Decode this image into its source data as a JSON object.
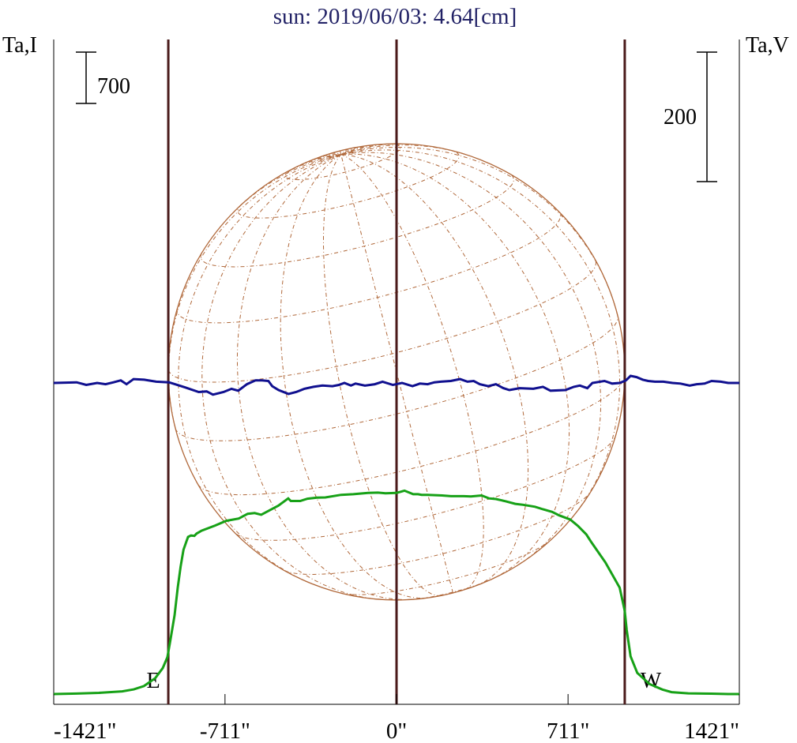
{
  "chart_data": {
    "type": "line",
    "title": "sun: 2019/06/03: 4.64[cm]",
    "y_left_label": "Ta,I",
    "y_right_label": "Ta,V",
    "x_unit": "arcsec",
    "x_range": [
      -1421,
      1421
    ],
    "x_ticks": [
      -1421,
      -711,
      0,
      711,
      1421
    ],
    "x_tick_labels": [
      "-1421\"",
      "-711\"",
      "0\"",
      "711\"",
      "1421\""
    ],
    "scale_bar_left": {
      "label": "700",
      "value": 700
    },
    "scale_bar_right": {
      "label": "200",
      "value": 200
    },
    "limb_markers": [
      {
        "label": "E",
        "x": -946
      },
      {
        "label": "W",
        "x": 946
      }
    ],
    "center_marker": {
      "x": 0
    },
    "solar_disk_radius_arcsec": 946,
    "series": [
      {
        "name": "I",
        "color": "#17a117",
        "axis": "left",
        "x": [
          -1421,
          -1326,
          -1234,
          -1137,
          -1089,
          -1047,
          -1000,
          -969,
          -950,
          -938,
          -920,
          -907,
          -895,
          -883,
          -871,
          -864,
          -852,
          -838,
          -829,
          -808,
          -752,
          -706,
          -654,
          -617,
          -588,
          -561,
          -514,
          -490,
          -449,
          -438,
          -399,
          -369,
          -330,
          -295,
          -230,
          -179,
          -118,
          -77,
          -46,
          0,
          33,
          69,
          89,
          104,
          129,
          189,
          226,
          279,
          308,
          353,
          383,
          412,
          453,
          492,
          525,
          574,
          607,
          645,
          674,
          720,
          752,
          787,
          808,
          866,
          925,
          946,
          954,
          970,
          998,
          1049,
          1102,
          1140,
          1209,
          1305,
          1375,
          1421
        ],
        "y": [
          0,
          7,
          16,
          37,
          63,
          109,
          218,
          353,
          502,
          721,
          1074,
          1451,
          1741,
          1968,
          2082,
          2143,
          2162,
          2157,
          2188,
          2228,
          2298,
          2363,
          2394,
          2459,
          2468,
          2446,
          2528,
          2568,
          2669,
          2633,
          2633,
          2664,
          2678,
          2682,
          2717,
          2726,
          2743,
          2747,
          2739,
          2743,
          2774,
          2726,
          2726,
          2717,
          2717,
          2708,
          2699,
          2699,
          2695,
          2708,
          2669,
          2660,
          2629,
          2594,
          2581,
          2555,
          2520,
          2485,
          2437,
          2380,
          2293,
          2175,
          2069,
          1794,
          1451,
          1135,
          875,
          515,
          288,
          136,
          61,
          26,
          10,
          5,
          0,
          0
        ]
      },
      {
        "name": "V",
        "color": "#10108f",
        "axis": "right",
        "x": [
          -1421,
          -1326,
          -1286,
          -1241,
          -1206,
          -1173,
          -1143,
          -1119,
          -1090,
          -1046,
          -996,
          -943,
          -900,
          -876,
          -820,
          -787,
          -761,
          -717,
          -684,
          -656,
          -620,
          -585,
          -557,
          -531,
          -515,
          -489,
          -448,
          -416,
          -382,
          -344,
          -307,
          -266,
          -239,
          -216,
          -189,
          -170,
          -131,
          -90,
          -58,
          -15,
          23,
          66,
          97,
          129,
          157,
          184,
          225,
          263,
          294,
          320,
          345,
          380,
          412,
          443,
          468,
          510,
          567,
          607,
          638,
          700,
          735,
          760,
          791,
          812,
          862,
          894,
          925,
          951,
          970,
          995,
          1021,
          1043,
          1071,
          1106,
          1144,
          1177,
          1215,
          1244,
          1277,
          1306,
          1344,
          1375,
          1421
        ],
        "y": [
          0,
          1,
          -3,
          0,
          -2,
          1,
          4,
          -2,
          6,
          5,
          2,
          1,
          -4,
          -7,
          -14,
          -13,
          -18,
          -14,
          -9,
          -12,
          -2,
          4,
          4,
          3,
          -5,
          -11,
          -17,
          -14,
          -9,
          -6,
          -4,
          -5,
          -3,
          0,
          -4,
          -1,
          -4,
          -2,
          2,
          -3,
          0,
          -5,
          -1,
          -2,
          1,
          2,
          3,
          6,
          2,
          3,
          -2,
          -5,
          -2,
          -8,
          -11,
          -8,
          -9,
          -6,
          -12,
          -11,
          -6,
          -4,
          -8,
          0,
          3,
          -1,
          0,
          4,
          11,
          9,
          5,
          3,
          2,
          2,
          0,
          -1,
          -4,
          -2,
          -1,
          3,
          2,
          0,
          0
        ]
      }
    ]
  }
}
